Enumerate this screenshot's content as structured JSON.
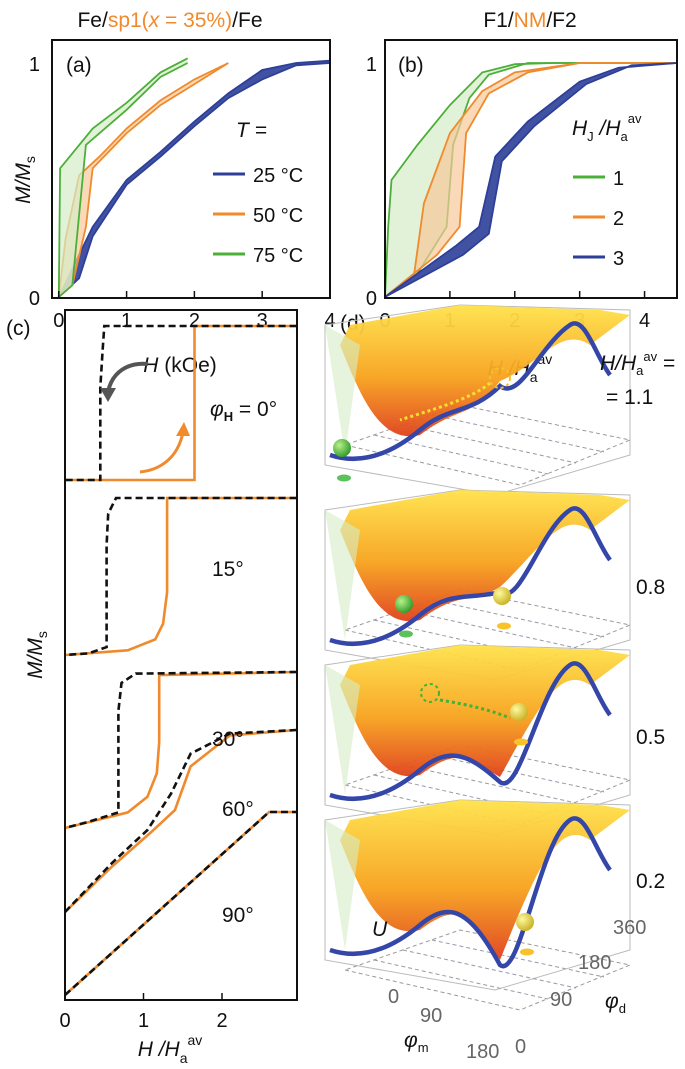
{
  "colors": {
    "green": "#4caf3a",
    "orange": "#f08a2c",
    "blue": "#2e3f98",
    "black": "#111111",
    "green_fill": "#d6ecc8",
    "orange_fill": "#f7c99a",
    "blue_fill": "#2e3f98"
  },
  "chart_data": [
    {
      "panel": "(a)",
      "type": "line",
      "title_parts": [
        "Fe/",
        "sp1(",
        "x",
        " = 35%)",
        "/Fe"
      ],
      "xlabel_italic": "H",
      "xlabel_rest": " (kOe)",
      "ylabel": "M/M",
      "ylabel_sub": "s",
      "xlim": [
        -0.1,
        4
      ],
      "ylim": [
        0,
        1.05
      ],
      "xticks": [
        "0",
        "1",
        "2",
        "3",
        "4"
      ],
      "yticks": [
        "0",
        "1"
      ],
      "legend_title": "T =",
      "legend_placement": "right",
      "series": [
        {
          "name": "25 °C",
          "color": "#2e3f98",
          "upper": [
            [
              0,
              0
            ],
            [
              0.3,
              0.18
            ],
            [
              0.5,
              0.3
            ],
            [
              1,
              0.5
            ],
            [
              1.5,
              0.62
            ],
            [
              2,
              0.75
            ],
            [
              2.5,
              0.87
            ],
            [
              3,
              0.97
            ],
            [
              3.5,
              1.0
            ],
            [
              4,
              1.01
            ]
          ],
          "lower": [
            [
              0,
              0
            ],
            [
              0.3,
              0.08
            ],
            [
              0.5,
              0.26
            ],
            [
              1,
              0.48
            ],
            [
              1.5,
              0.6
            ],
            [
              2,
              0.73
            ],
            [
              2.5,
              0.85
            ],
            [
              3,
              0.93
            ],
            [
              3.5,
              0.99
            ],
            [
              4,
              1.0
            ]
          ]
        },
        {
          "name": "50 °C",
          "color": "#f08a2c",
          "upper": [
            [
              0,
              0
            ],
            [
              0.1,
              0.25
            ],
            [
              0.3,
              0.52
            ],
            [
              0.6,
              0.6
            ],
            [
              1,
              0.72
            ],
            [
              1.5,
              0.84
            ],
            [
              2,
              0.93
            ],
            [
              2.5,
              1.0
            ]
          ],
          "lower": [
            [
              0,
              0
            ],
            [
              0.2,
              0.05
            ],
            [
              0.4,
              0.3
            ],
            [
              0.5,
              0.55
            ],
            [
              1,
              0.7
            ],
            [
              1.5,
              0.82
            ],
            [
              2,
              0.91
            ],
            [
              2.5,
              1.0
            ]
          ]
        },
        {
          "name": "75 °C",
          "color": "#4caf3a",
          "upper": [
            [
              0,
              0
            ],
            [
              0.02,
              0.55
            ],
            [
              0.5,
              0.72
            ],
            [
              1,
              0.83
            ],
            [
              1.5,
              0.96
            ],
            [
              1.9,
              1.02
            ]
          ],
          "lower": [
            [
              0,
              0
            ],
            [
              0.2,
              0.05
            ],
            [
              0.3,
              0.35
            ],
            [
              0.4,
              0.65
            ],
            [
              1,
              0.8
            ],
            [
              1.5,
              0.94
            ],
            [
              1.9,
              1.0
            ]
          ]
        }
      ]
    },
    {
      "panel": "(b)",
      "type": "line",
      "title_parts": [
        "F1/",
        "NM",
        "/F2"
      ],
      "xlabel": "H /H",
      "xlabel_sub": "a",
      "xlabel_sup": "av",
      "xlim": [
        0,
        4.5
      ],
      "ylim": [
        0,
        1.05
      ],
      "xticks": [
        "0",
        "1",
        "2",
        "3",
        "4"
      ],
      "yticks": [
        "0",
        "1"
      ],
      "legend_title": "H",
      "legend_title_sub": "J",
      "legend_title_rest": " /H",
      "legend_title_sub2": "a",
      "legend_title_sup": "av",
      "legend_placement": "right",
      "series": [
        {
          "name": "1",
          "color": "#4caf3a",
          "upper": [
            [
              0,
              0
            ],
            [
              0.05,
              0.3
            ],
            [
              0.1,
              0.5
            ],
            [
              0.5,
              0.65
            ],
            [
              1,
              0.82
            ],
            [
              1.5,
              0.96
            ],
            [
              2,
              0.995
            ],
            [
              2.6,
              1
            ],
            [
              4.5,
              1
            ]
          ],
          "lower": [
            [
              0,
              0
            ],
            [
              0.5,
              0.1
            ],
            [
              0.95,
              0.3
            ],
            [
              1.05,
              0.65
            ],
            [
              1.3,
              0.85
            ],
            [
              1.6,
              0.95
            ],
            [
              2.2,
              1
            ],
            [
              4.5,
              1
            ]
          ]
        },
        {
          "name": "2",
          "color": "#f08a2c",
          "upper": [
            [
              0,
              0
            ],
            [
              0.45,
              0.1
            ],
            [
              0.6,
              0.4
            ],
            [
              1,
              0.7
            ],
            [
              1.5,
              0.88
            ],
            [
              2,
              0.96
            ],
            [
              3,
              1
            ],
            [
              4.5,
              1
            ]
          ],
          "lower": [
            [
              0,
              0
            ],
            [
              0.8,
              0.18
            ],
            [
              1.15,
              0.3
            ],
            [
              1.25,
              0.7
            ],
            [
              1.6,
              0.87
            ],
            [
              2.2,
              0.96
            ],
            [
              3,
              1
            ],
            [
              4.5,
              1
            ]
          ]
        },
        {
          "name": "3",
          "color": "#2e3f98",
          "upper": [
            [
              0,
              0
            ],
            [
              1.1,
              0.22
            ],
            [
              1.45,
              0.3
            ],
            [
              1.7,
              0.6
            ],
            [
              2.2,
              0.75
            ],
            [
              3,
              0.92
            ],
            [
              3.6,
              0.98
            ],
            [
              4.5,
              1
            ]
          ],
          "lower": [
            [
              0,
              0
            ],
            [
              1.2,
              0.18
            ],
            [
              1.6,
              0.27
            ],
            [
              1.8,
              0.58
            ],
            [
              2.3,
              0.73
            ],
            [
              3.1,
              0.91
            ],
            [
              3.8,
              0.99
            ],
            [
              4.5,
              1
            ]
          ]
        }
      ]
    },
    {
      "panel": "(c)",
      "type": "line",
      "xlabel": "H /H",
      "xlabel_sub": "a",
      "xlabel_sup": "av",
      "ylabel": "M/M",
      "ylabel_sub": "s",
      "xlim": [
        0,
        2.95
      ],
      "xticks": [
        "0",
        "1",
        "2"
      ],
      "angle_prefix": "φ",
      "angle_sub": "H",
      "curves": [
        {
          "label": " = 0°",
          "dashed": [
            [
              2.95,
              1
            ],
            [
              0.5,
              1
            ],
            [
              0.48,
              0.85
            ],
            [
              0.45,
              0.6
            ],
            [
              0.45,
              0
            ],
            [
              0,
              0
            ]
          ],
          "solid": [
            [
              0,
              0
            ],
            [
              1.65,
              0
            ],
            [
              1.65,
              1
            ],
            [
              2.95,
              1
            ]
          ]
        },
        {
          "label": "15°",
          "dashed": [
            [
              2.95,
              1
            ],
            [
              0.65,
              1
            ],
            [
              0.55,
              0.9
            ],
            [
              0.53,
              0.7
            ],
            [
              0.53,
              0.05
            ],
            [
              0.3,
              0.01
            ],
            [
              0,
              0
            ]
          ],
          "solid": [
            [
              0,
              0
            ],
            [
              0.8,
              0.03
            ],
            [
              1.15,
              0.1
            ],
            [
              1.25,
              0.2
            ],
            [
              1.3,
              0.4
            ],
            [
              1.3,
              1
            ],
            [
              2.95,
              1
            ]
          ]
        },
        {
          "label": "30°",
          "dashed": [
            [
              2.95,
              1
            ],
            [
              0.9,
              0.99
            ],
            [
              0.72,
              0.93
            ],
            [
              0.68,
              0.75
            ],
            [
              0.68,
              0.1
            ],
            [
              0.3,
              0.04
            ],
            [
              0,
              0
            ]
          ],
          "solid": [
            [
              0,
              0
            ],
            [
              0.8,
              0.1
            ],
            [
              1.05,
              0.2
            ],
            [
              1.17,
              0.35
            ],
            [
              1.2,
              0.55
            ],
            [
              1.2,
              0.98
            ],
            [
              2.95,
              1
            ]
          ]
        },
        {
          "label": "60°",
          "dashed": [
            [
              2.95,
              1
            ],
            [
              2.1,
              0.98
            ],
            [
              1.6,
              0.87
            ],
            [
              1.35,
              0.65
            ],
            [
              1.05,
              0.45
            ],
            [
              0.6,
              0.27
            ],
            [
              0,
              0
            ]
          ],
          "solid": [
            [
              0,
              0
            ],
            [
              0.6,
              0.25
            ],
            [
              1.1,
              0.44
            ],
            [
              1.4,
              0.56
            ],
            [
              1.6,
              0.8
            ],
            [
              2.1,
              0.97
            ],
            [
              2.95,
              1
            ]
          ]
        },
        {
          "label": "90°",
          "dashed": [
            [
              0,
              0
            ],
            [
              2.6,
              1
            ],
            [
              2.95,
              1
            ]
          ],
          "solid": [
            [
              0,
              0
            ],
            [
              2.6,
              1
            ],
            [
              2.95,
              1
            ]
          ]
        }
      ]
    },
    {
      "panel": "(d)",
      "type": "surface",
      "field_label": "H/H",
      "field_sub": "a",
      "field_sup": "av",
      "field_suffix": " =",
      "levels": [
        "= 1.1",
        "0.8",
        "0.5",
        "0.2"
      ],
      "zlabel": "U",
      "xlabel": "φ",
      "xlabel_sub": "m",
      "xticks": [
        "0",
        "90",
        "180"
      ],
      "ylabel": "φ",
      "ylabel_sub": "d",
      "yticks": [
        "0",
        "90",
        "180",
        "360"
      ]
    }
  ]
}
